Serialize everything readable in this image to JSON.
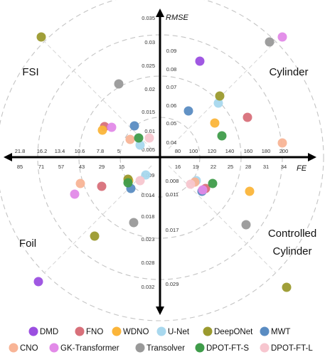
{
  "chart_data": {
    "type": "scatter",
    "axes": {
      "y_title": "RMSE",
      "x_title": "FE",
      "y_up_ticks": [
        "0.035",
        "0.03",
        "0.025",
        "0.02",
        "0.015",
        "0.01",
        "0.005"
      ],
      "y_diag_ticks": [
        "0.09",
        "0.08",
        "0.07",
        "0.06",
        "0.05",
        "0.04"
      ],
      "x_right_upper_ticks": [
        "80",
        "100",
        "120",
        "140",
        "160",
        "180",
        "200"
      ],
      "x_right_lower_ticks": [
        "16",
        "19",
        "22",
        "25",
        "28",
        "31",
        "34"
      ],
      "x_left_upper_ticks": [
        "21.8",
        "16.2",
        "13.4",
        "10.6",
        "7.8",
        "5"
      ],
      "x_left_lower_ticks": [
        "85",
        "71",
        "57",
        "43",
        "29",
        "15"
      ],
      "y_down_ticks": [
        "0.009",
        "0.014",
        "0.018",
        "0.023",
        "0.028",
        "0.032"
      ],
      "y_down_diag_ticks": [
        "0.008",
        "0.011",
        "0.017",
        "0.029"
      ]
    },
    "quadrant_labels": {
      "top_left": "FSI",
      "top_right": "Cylinder",
      "bottom_left": "Foil",
      "bottom_right": [
        "Controlled",
        "Cylinder"
      ]
    },
    "series": [
      {
        "name": "DMD",
        "color": "#9b4fe0",
        "points": [
          [
            281,
            86
          ],
          [
            54,
            396
          ]
        ]
      },
      {
        "name": "FNO",
        "color": "#d8707a",
        "points": [
          [
            147,
            178
          ],
          [
            348,
            165
          ],
          [
            143,
            262
          ],
          [
            289,
            265
          ]
        ]
      },
      {
        "name": "WDNO",
        "color": "#fbb53a",
        "points": [
          [
            144,
            183
          ],
          [
            302,
            173
          ],
          [
            181,
            254
          ],
          [
            351,
            269
          ]
        ]
      },
      {
        "name": "U-Net",
        "color": "#a8d8ee",
        "points": [
          [
            307,
            145
          ],
          [
            197,
            204
          ],
          [
            205,
            246
          ],
          [
            276,
            254
          ]
        ]
      },
      {
        "name": "DeepONet",
        "color": "#9b9a2e",
        "points": [
          [
            58,
            52
          ],
          [
            309,
            135
          ],
          [
            180,
            252
          ],
          [
            133,
            332
          ],
          [
            403,
            404
          ]
        ]
      },
      {
        "name": "MWT",
        "color": "#5a8cc2",
        "points": [
          [
            265,
            156
          ],
          [
            189,
            177
          ],
          [
            184,
            265
          ],
          [
            284,
            269
          ]
        ]
      },
      {
        "name": "CNO",
        "color": "#f8b496",
        "points": [
          [
            183,
            196
          ],
          [
            397,
            201
          ],
          [
            113,
            258
          ],
          [
            274,
            256
          ]
        ]
      },
      {
        "name": "GK-Transformer",
        "color": "#e28ae8",
        "points": [
          [
            397,
            52
          ],
          [
            157,
            179
          ],
          [
            105,
            273
          ],
          [
            285,
            267
          ]
        ]
      },
      {
        "name": "Transolver",
        "color": "#999999",
        "points": [
          [
            379,
            59
          ],
          [
            167,
            118
          ],
          [
            188,
            313
          ],
          [
            346,
            316
          ]
        ]
      },
      {
        "name": "DPOT-FT-S",
        "color": "#3f9c4a",
        "points": [
          [
            312,
            191
          ],
          [
            195,
            194
          ],
          [
            180,
            257
          ],
          [
            299,
            258
          ]
        ]
      },
      {
        "name": "DPOT-FT-L",
        "color": "#f7c6cf",
        "points": [
          [
            210,
            194
          ],
          [
            197,
            254
          ],
          [
            268,
            259
          ]
        ]
      }
    ],
    "legend_rows": [
      [
        "DMD",
        "FNO",
        "WDNO",
        "U-Net",
        "DeepONet",
        "MWT"
      ],
      [
        "CNO",
        "GK-Transformer",
        "Transolver",
        "DPOT-FT-S",
        "DPOT-FT-L"
      ]
    ]
  }
}
